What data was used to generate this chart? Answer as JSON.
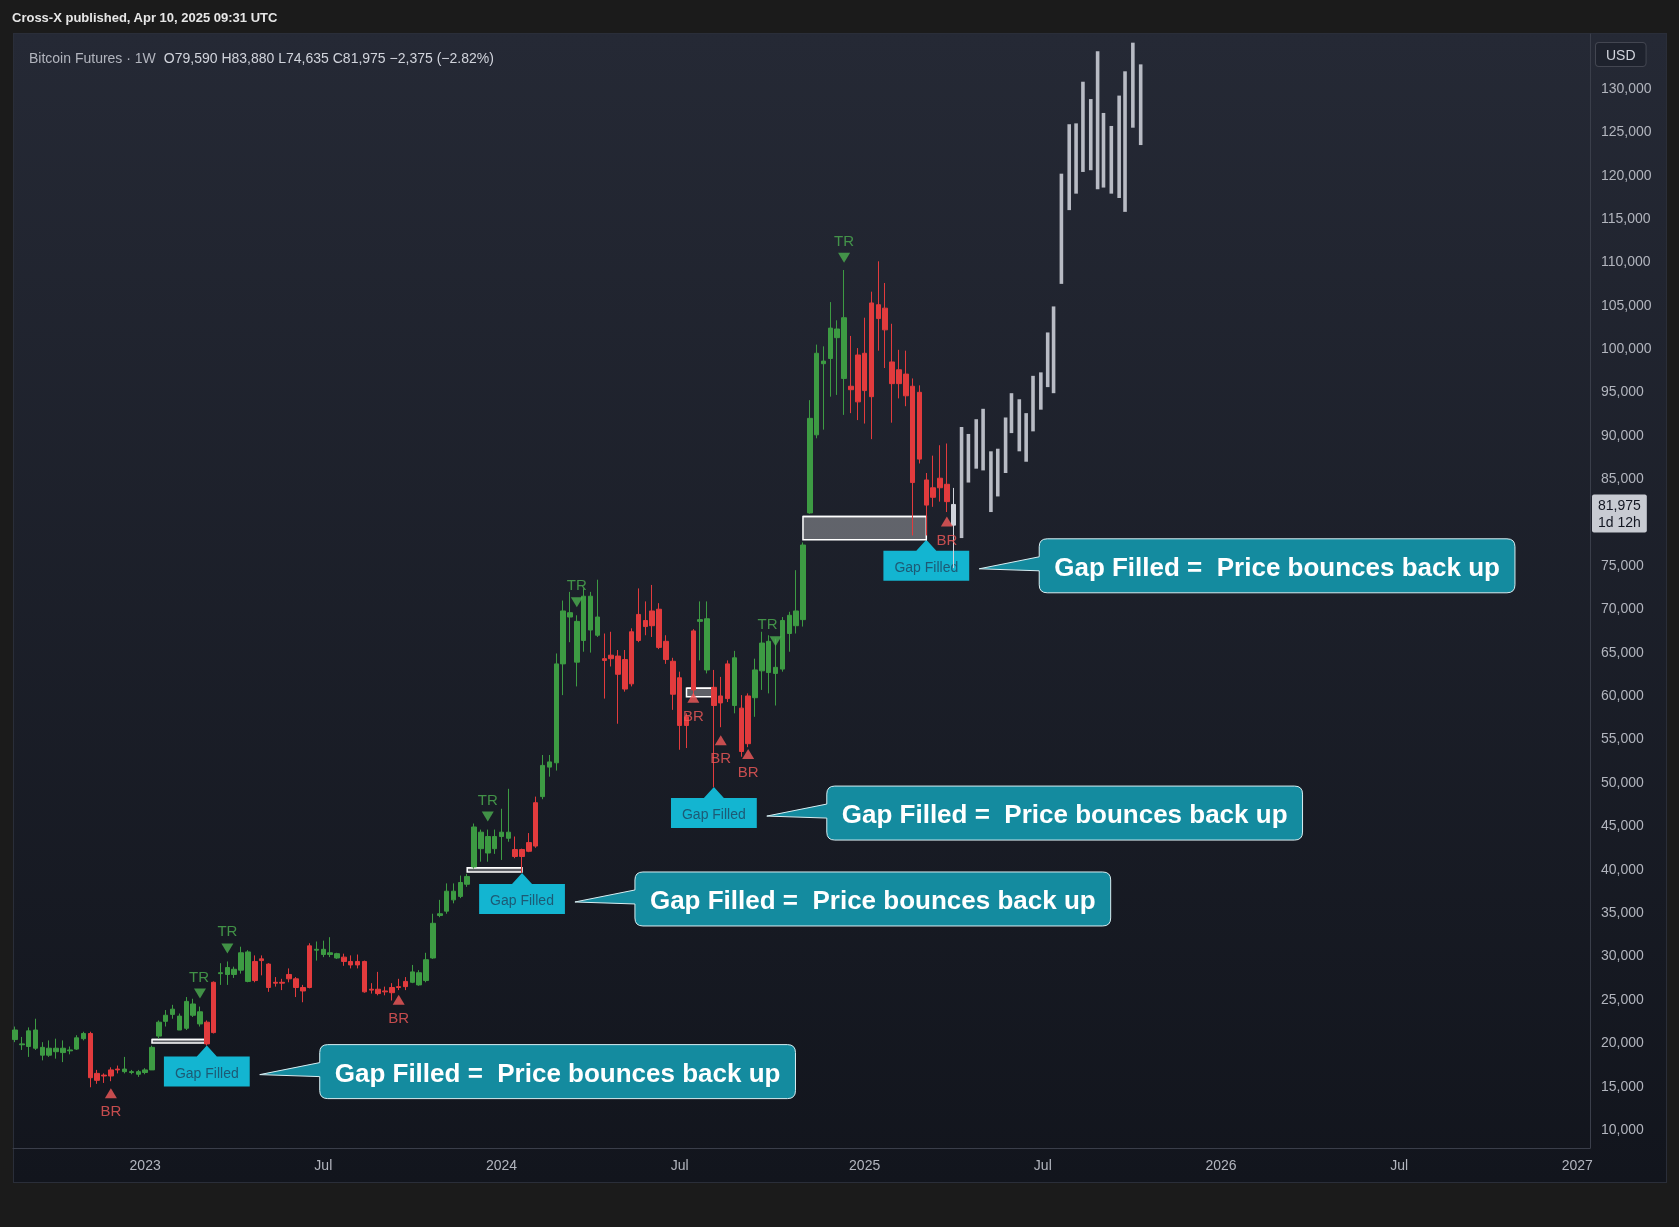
{
  "chart_data": {
    "type": "candlestick",
    "title": "Bitcoin Futures · 1W",
    "subtitle": "O79,590 H83,880 L74,635 C81,975 −2,375 (−2.82%)",
    "ylabel": "USD",
    "annotations": [
      "Cross-X published, Apr 10, 2025 09:31 UTC",
      {
        "text": "Gap Filled",
        "x": "2023-03-06",
        "y": 19600
      },
      "Gap Filled =  Price bounces back up",
      {
        "text": "Gap Filled",
        "x": "2024-01-22",
        "y": 39500
      },
      "Gap Filled =  Price bounces back up",
      {
        "text": "Gap Filled",
        "x": "2024-08-05",
        "y": 49400
      },
      "Gap Filled =  Price bounces back up",
      {
        "text": "Gap Filled",
        "x": "2025-03-10",
        "y": 77900
      },
      "Gap Filled =  Price bounces back up",
      "81,975\n1d 12h"
    ],
    "xlim": [
      "2022-08-20",
      "2027-01-17"
    ],
    "ylim": [
      7800,
      136200
    ],
    "xticks": [
      {
        "value": "2023-01-02",
        "label": "2023"
      },
      {
        "value": "2023-07-03",
        "label": "Jul"
      },
      {
        "value": "2024-01-01",
        "label": "2024"
      },
      {
        "value": "2024-07-01",
        "label": "Jul"
      },
      {
        "value": "2025-01-06",
        "label": "2025"
      },
      {
        "value": "2025-07-07",
        "label": "Jul"
      },
      {
        "value": "2026-01-05",
        "label": "2026"
      },
      {
        "value": "2026-07-06",
        "label": "Jul"
      },
      {
        "value": "2027-01-04",
        "label": "2027"
      }
    ],
    "yticks": [
      {
        "value": 10000,
        "label": "10,000"
      },
      {
        "value": 15000,
        "label": "15,000"
      },
      {
        "value": 20000,
        "label": "20,000"
      },
      {
        "value": 25000,
        "label": "25,000"
      },
      {
        "value": 30000,
        "label": "30,000"
      },
      {
        "value": 35000,
        "label": "35,000"
      },
      {
        "value": 40000,
        "label": "40,000"
      },
      {
        "value": 45000,
        "label": "45,000"
      },
      {
        "value": 50000,
        "label": "50,000"
      },
      {
        "value": 55000,
        "label": "55,000"
      },
      {
        "value": 60000,
        "label": "60,000"
      },
      {
        "value": 65000,
        "label": "65,000"
      },
      {
        "value": 70000,
        "label": "70,000"
      },
      {
        "value": 75000,
        "label": "75,000"
      },
      {
        "value": 85000,
        "label": "85,000"
      },
      {
        "value": 90000,
        "label": "90,000"
      },
      {
        "value": 95000,
        "label": "95,000"
      },
      {
        "value": 100000,
        "label": "100,000"
      },
      {
        "value": 105000,
        "label": "105,000"
      },
      {
        "value": 110000,
        "label": "110,000"
      },
      {
        "value": 115000,
        "label": "115,000"
      },
      {
        "value": 120000,
        "label": "120,000"
      },
      {
        "value": 125000,
        "label": "125,000"
      },
      {
        "value": 130000,
        "label": "130,000"
      }
    ],
    "series": [
      {
        "x": [
          "2022-08-22",
          "2022-08-29",
          "2022-09-05",
          "2022-09-12",
          "2022-09-19",
          "2022-09-26",
          "2022-10-03",
          "2022-10-10",
          "2022-10-17",
          "2022-10-24",
          "2022-10-31",
          "2022-11-07",
          "2022-11-14",
          "2022-11-21",
          "2022-11-28",
          "2022-12-05",
          "2022-12-12",
          "2022-12-19",
          "2022-12-26",
          "2023-01-02",
          "2023-01-09",
          "2023-01-16",
          "2023-01-23",
          "2023-01-30",
          "2023-02-06",
          "2023-02-13",
          "2023-02-20",
          "2023-02-27",
          "2023-03-06",
          "2023-03-13",
          "2023-03-20",
          "2023-03-27",
          "2023-04-03",
          "2023-04-10",
          "2023-04-17",
          "2023-04-24",
          "2023-05-01",
          "2023-05-08",
          "2023-05-15",
          "2023-05-22",
          "2023-05-29",
          "2023-06-05",
          "2023-06-12",
          "2023-06-19",
          "2023-06-26",
          "2023-07-03",
          "2023-07-10",
          "2023-07-17",
          "2023-07-24",
          "2023-07-31",
          "2023-08-07",
          "2023-08-14",
          "2023-08-21",
          "2023-08-28",
          "2023-09-04",
          "2023-09-11",
          "2023-09-18",
          "2023-09-25",
          "2023-10-02",
          "2023-10-09",
          "2023-10-16",
          "2023-10-23",
          "2023-10-30",
          "2023-11-06",
          "2023-11-13",
          "2023-11-20",
          "2023-11-27",
          "2023-12-04",
          "2023-12-11",
          "2023-12-18",
          "2023-12-25",
          "2024-01-01",
          "2024-01-08",
          "2024-01-15",
          "2024-01-22",
          "2024-01-29",
          "2024-02-05",
          "2024-02-12",
          "2024-02-19",
          "2024-02-26",
          "2024-03-04",
          "2024-03-11",
          "2024-03-18",
          "2024-03-25",
          "2024-04-01",
          "2024-04-08",
          "2024-04-15",
          "2024-04-22",
          "2024-04-29",
          "2024-05-06",
          "2024-05-13",
          "2024-05-20",
          "2024-05-27",
          "2024-06-03",
          "2024-06-10",
          "2024-06-17",
          "2024-06-24",
          "2024-07-01",
          "2024-07-08",
          "2024-07-15",
          "2024-07-22",
          "2024-07-29",
          "2024-08-05",
          "2024-08-12",
          "2024-08-19",
          "2024-08-26",
          "2024-09-02",
          "2024-09-09",
          "2024-09-16",
          "2024-09-23",
          "2024-09-30",
          "2024-10-07",
          "2024-10-14",
          "2024-10-21",
          "2024-10-28",
          "2024-11-04",
          "2024-11-11",
          "2024-11-18",
          "2024-11-25",
          "2024-12-02",
          "2024-12-09",
          "2024-12-16",
          "2024-12-23",
          "2024-12-30",
          "2025-01-06",
          "2025-01-13",
          "2025-01-20",
          "2025-01-27",
          "2025-02-03",
          "2025-02-10",
          "2025-02-17",
          "2025-02-24",
          "2025-03-03",
          "2025-03-10",
          "2025-03-17",
          "2025-03-24",
          "2025-03-31",
          "2025-04-07"
        ],
        "ohlc": [
          [
            20300,
            21800,
            20000,
            21400
          ],
          [
            19700,
            20600,
            19100,
            19800
          ],
          [
            19500,
            21700,
            18300,
            21300
          ],
          [
            19300,
            22700,
            19100,
            21400
          ],
          [
            18500,
            20000,
            17900,
            19400
          ],
          [
            18500,
            20200,
            18300,
            19300
          ],
          [
            18900,
            20400,
            18100,
            19300
          ],
          [
            18800,
            20200,
            17700,
            19300
          ],
          [
            19000,
            19500,
            18600,
            19100
          ],
          [
            19200,
            20800,
            19100,
            20500
          ],
          [
            20400,
            21200,
            20200,
            21000
          ],
          [
            21000,
            21200,
            14800,
            15900
          ],
          [
            16400,
            16800,
            15200,
            15600
          ],
          [
            16200,
            16400,
            15300,
            16100
          ],
          [
            16800,
            17100,
            15500,
            16100
          ],
          [
            16900,
            17300,
            16400,
            16800
          ],
          [
            16600,
            18300,
            16400,
            16900
          ],
          [
            16500,
            16800,
            16300,
            16600
          ],
          [
            16300,
            16800,
            16000,
            16600
          ],
          [
            16500,
            17000,
            16300,
            16800
          ],
          [
            16800,
            19600,
            16800,
            19400
          ],
          [
            20700,
            22500,
            20400,
            22300
          ],
          [
            22400,
            23700,
            21800,
            23100
          ],
          [
            23200,
            24300,
            22700,
            23800
          ],
          [
            21400,
            23300,
            21400,
            23000
          ],
          [
            21600,
            25200,
            21400,
            24700
          ],
          [
            23100,
            25000,
            22900,
            24400
          ],
          [
            22100,
            24100,
            21800,
            23500
          ],
          [
            22300,
            22500,
            19600,
            19800
          ],
          [
            26900,
            27000,
            21000,
            21100
          ],
          [
            27900,
            29100,
            26600,
            28000
          ],
          [
            27800,
            29300,
            26600,
            28600
          ],
          [
            27800,
            28700,
            27400,
            28400
          ],
          [
            28300,
            31000,
            27900,
            30300
          ],
          [
            27000,
            30600,
            26900,
            30400
          ],
          [
            29300,
            30000,
            26900,
            27100
          ],
          [
            29600,
            30000,
            27700,
            29400
          ],
          [
            29000,
            29100,
            25800,
            26300
          ],
          [
            26900,
            27500,
            26400,
            26800
          ],
          [
            26900,
            27300,
            26000,
            26800
          ],
          [
            27800,
            28500,
            26900,
            27300
          ],
          [
            27300,
            27500,
            25200,
            26300
          ],
          [
            26300,
            26600,
            24600,
            25900
          ],
          [
            31100,
            31400,
            26200,
            26300
          ],
          [
            30600,
            31600,
            29400,
            30700
          ],
          [
            30100,
            31700,
            29800,
            30700
          ],
          [
            30100,
            32100,
            29800,
            30300
          ],
          [
            29700,
            30300,
            29600,
            30200
          ],
          [
            29800,
            30200,
            28800,
            29300
          ],
          [
            29300,
            30000,
            28500,
            28900
          ],
          [
            29300,
            30100,
            28500,
            28900
          ],
          [
            29300,
            29400,
            25700,
            25800
          ],
          [
            26100,
            26800,
            25600,
            26000
          ],
          [
            26100,
            28100,
            25400,
            25600
          ],
          [
            25900,
            26400,
            25400,
            25800
          ],
          [
            26300,
            26800,
            24800,
            25700
          ],
          [
            26400,
            27300,
            26000,
            26300
          ],
          [
            27000,
            27500,
            26000,
            26400
          ],
          [
            26900,
            28900,
            26800,
            28100
          ],
          [
            26600,
            28300,
            26500,
            28000
          ],
          [
            27100,
            30300,
            26900,
            29500
          ],
          [
            29700,
            34800,
            29600,
            33700
          ],
          [
            34600,
            36400,
            34400,
            34800
          ],
          [
            35100,
            38300,
            34800,
            37400
          ],
          [
            36400,
            38300,
            36000,
            37400
          ],
          [
            36800,
            39200,
            36600,
            38400
          ],
          [
            38200,
            39400,
            37900,
            39100
          ],
          [
            40200,
            45200,
            40000,
            44800
          ],
          [
            42300,
            44500,
            40800,
            44200
          ],
          [
            41800,
            44500,
            40800,
            43700
          ],
          [
            42300,
            44500,
            41700,
            43700
          ],
          [
            43700,
            46900,
            41000,
            44200
          ],
          [
            43500,
            49200,
            43100,
            44200
          ],
          [
            42200,
            43700,
            41200,
            41400
          ],
          [
            42200,
            42300,
            39500,
            41400
          ],
          [
            43000,
            44100,
            41900,
            42000
          ],
          [
            47600,
            48300,
            42400,
            42600
          ],
          [
            48300,
            53100,
            48000,
            51900
          ],
          [
            51700,
            53100,
            50600,
            52300
          ],
          [
            52200,
            64800,
            51300,
            63600
          ],
          [
            63600,
            70900,
            60000,
            69700
          ],
          [
            69000,
            71900,
            66100,
            69500
          ],
          [
            63800,
            69200,
            61000,
            68500
          ],
          [
            66300,
            72300,
            65000,
            71400
          ],
          [
            67500,
            71900,
            64900,
            71400
          ],
          [
            66900,
            73300,
            66700,
            69000
          ],
          [
            64200,
            67100,
            59600,
            64000
          ],
          [
            64600,
            67300,
            63300,
            64200
          ],
          [
            64500,
            65200,
            56700,
            62400
          ],
          [
            64100,
            65200,
            60400,
            60700
          ],
          [
            67300,
            67700,
            61000,
            61300
          ],
          [
            69300,
            72300,
            66100,
            66300
          ],
          [
            68600,
            70800,
            66900,
            67900
          ],
          [
            69700,
            72700,
            66700,
            68000
          ],
          [
            69900,
            70600,
            65300,
            65500
          ],
          [
            66200,
            66900,
            63600,
            64100
          ],
          [
            63900,
            64300,
            58300,
            60100
          ],
          [
            62000,
            62700,
            53700,
            56500
          ],
          [
            57500,
            57900,
            53900,
            56500
          ],
          [
            67400,
            67600,
            59800,
            60600
          ],
          [
            68500,
            70800,
            64000,
            68700
          ],
          [
            62900,
            70800,
            62500,
            68800
          ],
          [
            60900,
            62900,
            49400,
            58800
          ],
          [
            59900,
            62100,
            56300,
            59100
          ],
          [
            63600,
            64000,
            59200,
            59600
          ],
          [
            58800,
            65100,
            57900,
            64300
          ],
          [
            58500,
            60000,
            52900,
            53500
          ],
          [
            59900,
            60200,
            54000,
            54400
          ],
          [
            59700,
            64200,
            57500,
            62900
          ],
          [
            62800,
            67300,
            60600,
            66000
          ],
          [
            62600,
            66900,
            60200,
            66200
          ],
          [
            62500,
            66500,
            58800,
            63200
          ],
          [
            63000,
            69000,
            62700,
            68600
          ],
          [
            67100,
            69600,
            65000,
            69200
          ],
          [
            68000,
            74400,
            67100,
            69700
          ],
          [
            68700,
            77600,
            67900,
            77300
          ],
          [
            81000,
            94000,
            80900,
            91900
          ],
          [
            90000,
            100400,
            89600,
            99400
          ],
          [
            98200,
            100200,
            90600,
            98500
          ],
          [
            98800,
            105300,
            94400,
            102300
          ],
          [
            101200,
            103200,
            94600,
            102200
          ],
          [
            96500,
            109000,
            92300,
            103500
          ],
          [
            95600,
            101400,
            92500,
            95200
          ],
          [
            99200,
            100000,
            91700,
            93800
          ],
          [
            99400,
            103500,
            91300,
            95100
          ],
          [
            105200,
            106500,
            89500,
            94400
          ],
          [
            105000,
            110000,
            99700,
            103400
          ],
          [
            104600,
            107500,
            97700,
            102100
          ],
          [
            98400,
            102800,
            91400,
            95900
          ],
          [
            97500,
            99800,
            94200,
            95900
          ],
          [
            97000,
            99700,
            93300,
            94500
          ],
          [
            95600,
            96500,
            78400,
            84500
          ],
          [
            94900,
            95700,
            86700,
            87200
          ],
          [
            84800,
            85600,
            78400,
            81900
          ],
          [
            83900,
            87600,
            81700,
            82800
          ],
          [
            85000,
            88800,
            82300,
            83900
          ],
          [
            84300,
            89000,
            81100,
            82300
          ],
          [
            79590,
            83880,
            74635,
            81975
          ]
        ],
        "colors": [
          "#3d9b43",
          "#3d9b43",
          "#3d9b43",
          "#3d9b43",
          "#3d9b43",
          "#3d9b43",
          "#3d9b43",
          "#3d9b43",
          "#3d9b43",
          "#3d9b43",
          "#3d9b43",
          "#e23b3d",
          "#e23b3d",
          "#e23b3d",
          "#e23b3d",
          "#e23b3d",
          "#3d9b43",
          "#3d9b43",
          "#3d9b43",
          "#3d9b43",
          "#3d9b43",
          "#3d9b43",
          "#3d9b43",
          "#3d9b43",
          "#3d9b43",
          "#3d9b43",
          "#3d9b43",
          "#3d9b43",
          "#e23b3d",
          "#e23b3d",
          "#3d9b43",
          "#3d9b43",
          "#3d9b43",
          "#3d9b43",
          "#3d9b43",
          "#e23b3d",
          "#e23b3d",
          "#e23b3d",
          "#e23b3d",
          "#e23b3d",
          "#e23b3d",
          "#e23b3d",
          "#e23b3d",
          "#e23b3d",
          "#3d9b43",
          "#3d9b43",
          "#3d9b43",
          "#3d9b43",
          "#e23b3d",
          "#e23b3d",
          "#e23b3d",
          "#e23b3d",
          "#e23b3d",
          "#e23b3d",
          "#e23b3d",
          "#e23b3d",
          "#e23b3d",
          "#e23b3d",
          "#3d9b43",
          "#3d9b43",
          "#3d9b43",
          "#3d9b43",
          "#3d9b43",
          "#3d9b43",
          "#3d9b43",
          "#3d9b43",
          "#3d9b43",
          "#3d9b43",
          "#3d9b43",
          "#3d9b43",
          "#3d9b43",
          "#3d9b43",
          "#3d9b43",
          "#e23b3d",
          "#e23b3d",
          "#e23b3d",
          "#e23b3d",
          "#3d9b43",
          "#3d9b43",
          "#3d9b43",
          "#3d9b43",
          "#3d9b43",
          "#3d9b43",
          "#3d9b43",
          "#3d9b43",
          "#3d9b43",
          "#e23b3d",
          "#e23b3d",
          "#e23b3d",
          "#e23b3d",
          "#e23b3d",
          "#e23b3d",
          "#e23b3d",
          "#e23b3d",
          "#e23b3d",
          "#e23b3d",
          "#e23b3d",
          "#e23b3d",
          "#e23b3d",
          "#e23b3d",
          "#3d9b43",
          "#3d9b43",
          "#e23b3d",
          "#e23b3d",
          "#e23b3d",
          "#3d9b43",
          "#e23b3d",
          "#e23b3d",
          "#3d9b43",
          "#3d9b43",
          "#3d9b43",
          "#3d9b43",
          "#3d9b43",
          "#3d9b43",
          "#3d9b43",
          "#3d9b43",
          "#3d9b43",
          "#3d9b43",
          "#3d9b43",
          "#3d9b43",
          "#3d9b43",
          "#3d9b43",
          "#e23b3d",
          "#e23b3d",
          "#e23b3d",
          "#e23b3d",
          "#e23b3d",
          "#e23b3d",
          "#e23b3d",
          "#e23b3d",
          "#e23b3d",
          "#e23b3d",
          "#e23b3d",
          "#e23b3d",
          "#e23b3d",
          "#e23b3d",
          "#e23b3d",
          "#d1d4dc"
        ]
      },
      {
        "type": "bar",
        "x": [
          "2025-04-15",
          "2025-04-22",
          "2025-04-30",
          "2025-05-07",
          "2025-05-15",
          "2025-05-22",
          "2025-05-30",
          "2025-06-05",
          "2025-06-13",
          "2025-06-20",
          "2025-06-27",
          "2025-07-05",
          "2025-07-12",
          "2025-07-18",
          "2025-07-26",
          "2025-08-03",
          "2025-08-10",
          "2025-08-17",
          "2025-08-25",
          "2025-09-01",
          "2025-09-07",
          "2025-09-15",
          "2025-09-23",
          "2025-09-29",
          "2025-10-07",
          "2025-10-15"
        ],
        "base": [
          78100,
          84500,
          86100,
          85900,
          81100,
          82900,
          85600,
          90200,
          88100,
          86900,
          90400,
          92900,
          95500,
          94800,
          107400,
          115900,
          117800,
          120300,
          120500,
          118300,
          118500,
          117800,
          117300,
          115700,
          125400,
          123400
        ],
        "values": [
          12800,
          5600,
          5700,
          7100,
          7000,
          5500,
          6400,
          4600,
          6000,
          5600,
          6400,
          4300,
          6300,
          10000,
          12700,
          9900,
          8100,
          10400,
          8200,
          15900,
          8600,
          7800,
          11800,
          16200,
          9800,
          9300
        ],
        "color": "#b8bbc4"
      },
      {
        "type": "scatter",
        "name": "TR",
        "marker": "triangle",
        "color": "#4caf50",
        "x": [
          "2023-02-27",
          "2023-03-27",
          "2023-12-18",
          "2024-03-18",
          "2024-10-07",
          "2024-12-16"
        ],
        "values": [
          25600,
          30800,
          46000,
          70700,
          66200,
          110400
        ]
      },
      {
        "type": "scatter",
        "name": "BR",
        "marker": "triangle",
        "color": "#f25a5a",
        "x": [
          "2022-11-28",
          "2023-09-18",
          "2024-07-15",
          "2024-08-12",
          "2024-09-09",
          "2025-03-31"
        ],
        "values": [
          14100,
          24900,
          59700,
          54800,
          53200,
          80000
        ]
      },
      {
        "type": "line",
        "color": "#ffffff",
        "x": [
          "2023-01-09",
          "2023-03-06"
        ],
        "values": [
          20300,
          20300
        ],
        "lower": [
          19900,
          19900
        ],
        "upper": [
          20300,
          20300
        ]
      },
      {
        "type": "line",
        "color": "#ffffff",
        "x": [
          "2023-11-27",
          "2024-01-22"
        ],
        "values": [
          40100,
          40100
        ],
        "lower": [
          39600,
          39600
        ],
        "upper": [
          40100,
          40100
        ]
      },
      {
        "type": "line",
        "color": "#ffffff",
        "x": [
          "2024-07-08",
          "2024-08-05"
        ],
        "values": [
          60800,
          60800
        ],
        "lower": [
          59800,
          59800
        ],
        "upper": [
          60800,
          60800
        ]
      },
      {
        "type": "line",
        "color": "#ffffff",
        "x": [
          "2024-11-04",
          "2025-03-10"
        ],
        "values": [
          80600,
          80600
        ],
        "lower": [
          77900,
          77900
        ],
        "upper": [
          80600,
          80600
        ]
      }
    ]
  }
}
